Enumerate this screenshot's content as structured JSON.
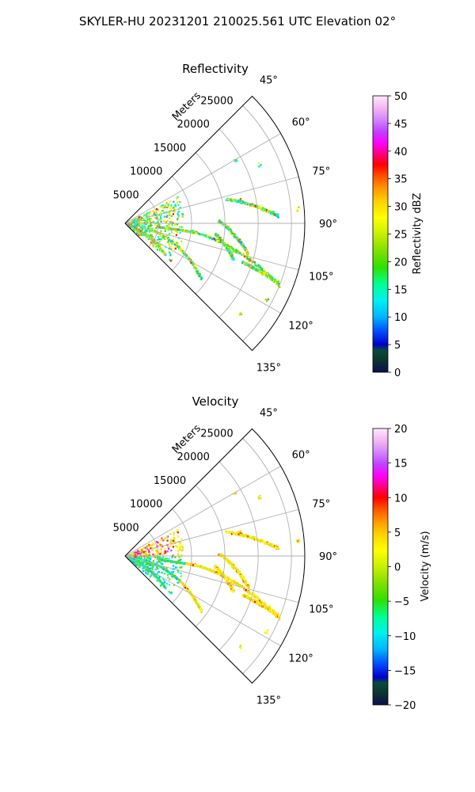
{
  "figure": {
    "suptitle": "SKYLER-HU  20231201  210025.561 UTC Elevation 02°"
  },
  "chart_data": [
    {
      "type": "heatmap",
      "title": "Reflectivity",
      "radial_label": "Meters",
      "radial_ticks": [
        5000,
        10000,
        15000,
        20000,
        25000
      ],
      "angle_ticks": [
        "45°",
        "60°",
        "75°",
        "90°",
        "105°",
        "120°",
        "135°"
      ],
      "theta_range_deg": [
        45,
        135
      ],
      "r_range": [
        0,
        27000
      ],
      "colorbar": {
        "label": "Reflectivity dBZ",
        "range": [
          0,
          50
        ],
        "ticks": [
          "0",
          "5",
          "10",
          "15",
          "20",
          "25",
          "30",
          "35",
          "40",
          "45",
          "50"
        ],
        "colormap": "pyart_HomeyerRainbow"
      }
    },
    {
      "type": "heatmap",
      "title": "Velocity",
      "radial_label": "Meters",
      "radial_ticks": [
        5000,
        10000,
        15000,
        20000,
        25000
      ],
      "angle_ticks": [
        "45°",
        "60°",
        "75°",
        "90°",
        "105°",
        "120°",
        "135°"
      ],
      "theta_range_deg": [
        45,
        135
      ],
      "r_range": [
        0,
        27000
      ],
      "colorbar": {
        "label": "Velocity (m/s)",
        "range": [
          -20,
          20
        ],
        "ticks": [
          "−20",
          "−15",
          "−10",
          "−5",
          "0",
          "5",
          "10",
          "15",
          "20"
        ],
        "colormap": "pyart_HomeyerRainbow"
      }
    }
  ]
}
